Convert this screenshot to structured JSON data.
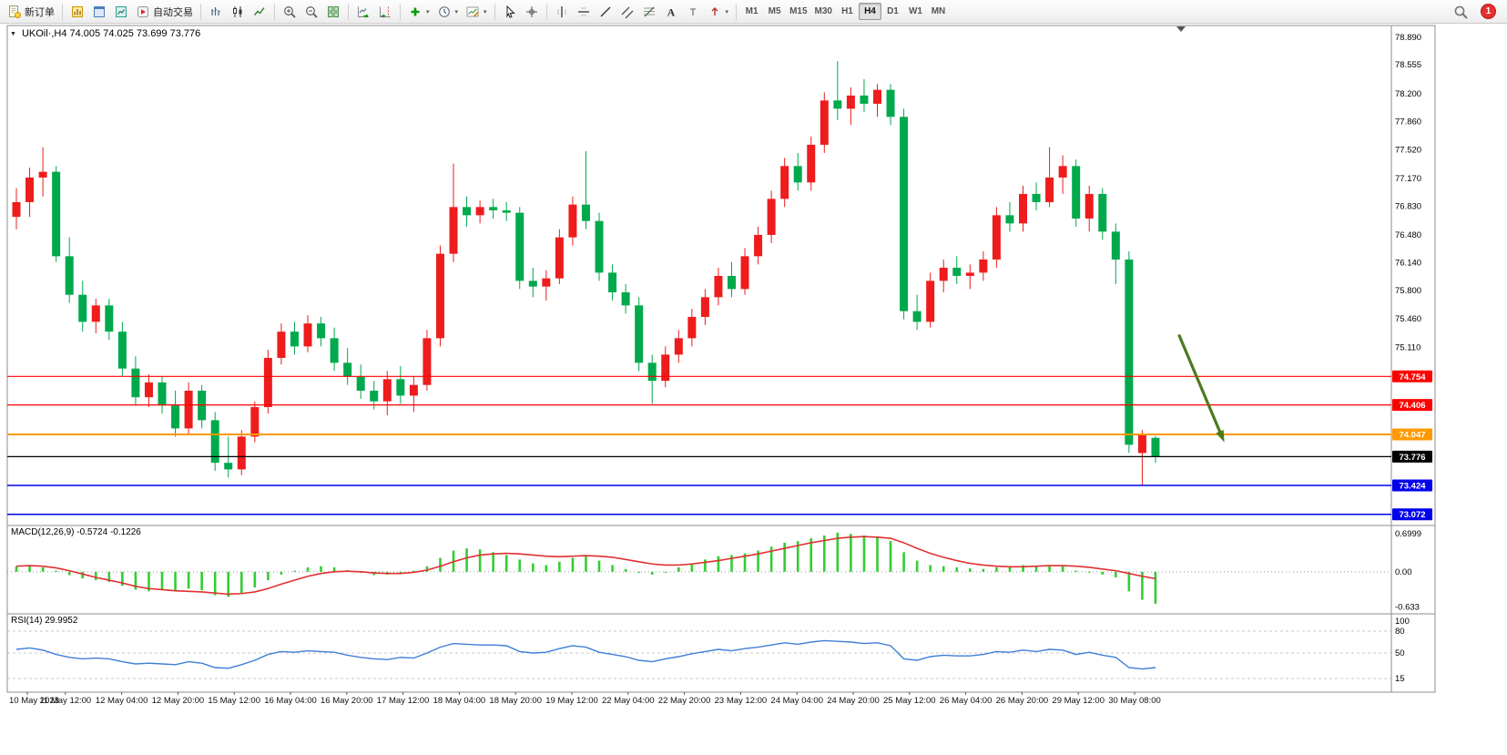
{
  "toolbar": {
    "buttons": [
      {
        "name": "new-order-button",
        "icon": "new-order-icon",
        "label": "新订单"
      },
      {
        "name": "separator"
      },
      {
        "name": "market-watch-button",
        "icon": "market-watch-icon"
      },
      {
        "name": "data-window-button",
        "icon": "data-window-icon"
      },
      {
        "name": "strategy-tester-button",
        "icon": "strategy-tester-icon"
      },
      {
        "name": "auto-trading-button",
        "icon": "auto-trading-icon",
        "label": "自动交易"
      },
      {
        "name": "separator"
      },
      {
        "name": "bar-chart-button",
        "icon": "bar-chart-icon"
      },
      {
        "name": "candlestick-chart-button",
        "icon": "candlestick-chart-icon"
      },
      {
        "name": "line-chart-button",
        "icon": "line-chart-icon"
      },
      {
        "name": "separator"
      },
      {
        "name": "zoom-in-button",
        "icon": "zoom-in-icon"
      },
      {
        "name": "zoom-out-button",
        "icon": "zoom-out-icon"
      },
      {
        "name": "tile-windows-button",
        "icon": "tile-windows-icon"
      },
      {
        "name": "separator"
      },
      {
        "name": "auto-scroll-button",
        "icon": "auto-scroll-icon"
      },
      {
        "name": "chart-shift-button",
        "icon": "chart-shift-icon"
      },
      {
        "name": "separator"
      },
      {
        "name": "indicators-button",
        "icon": "indicators-add-icon",
        "dropdown": true
      },
      {
        "name": "periods-button",
        "icon": "periods-icon",
        "dropdown": true
      },
      {
        "name": "templates-button",
        "icon": "templates-icon",
        "dropdown": true
      },
      {
        "name": "separator"
      },
      {
        "name": "cursor-button",
        "icon": "cursor-icon"
      },
      {
        "name": "crosshair-button",
        "icon": "crosshair-icon"
      },
      {
        "name": "separator"
      },
      {
        "name": "vertical-line-button",
        "icon": "vline-icon"
      },
      {
        "name": "horizontal-line-button",
        "icon": "hline-icon"
      },
      {
        "name": "trendline-button",
        "icon": "trendline-icon"
      },
      {
        "name": "channel-button",
        "icon": "channel-icon"
      },
      {
        "name": "fibonacci-button",
        "icon": "fibonacci-icon"
      },
      {
        "name": "text-button",
        "icon": "text-icon"
      },
      {
        "name": "label-button",
        "icon": "label-icon"
      },
      {
        "name": "arrows-button",
        "icon": "arrows-icon",
        "dropdown": true
      },
      {
        "name": "separator"
      }
    ],
    "timeframes": [
      "M1",
      "M5",
      "M15",
      "M30",
      "H1",
      "H4",
      "D1",
      "W1",
      "MN"
    ],
    "active_timeframe": "H4",
    "notification_count": "1"
  },
  "chart": {
    "menu_icon_glyph": "▼",
    "symbol_line": "UKOil·,H4 74.005 74.025 73.699 73.776"
  },
  "indicators": {
    "macd_label": "MACD(12,26,9) -0.5724 -0.1226",
    "rsi_label": "RSI(14) 29.9952"
  },
  "chart_data": [
    {
      "type": "candlestick",
      "symbol": "UKOil",
      "timeframe": "H4",
      "current_ohlc": {
        "open": 74.005,
        "high": 74.025,
        "low": 73.699,
        "close": 73.776
      },
      "ylim": [
        72.98,
        78.99
      ],
      "y_ticks": [
        "78.890",
        "78.555",
        "78.200",
        "77.860",
        "77.520",
        "77.170",
        "76.830",
        "76.480",
        "76.140",
        "75.800",
        "75.460",
        "75.110"
      ],
      "x_ticks": [
        "10 May 2023",
        "11 May 12:00",
        "12 May 04:00",
        "12 May 20:00",
        "15 May 12:00",
        "16 May 04:00",
        "16 May 20:00",
        "17 May 12:00",
        "18 May 04:00",
        "18 May 20:00",
        "19 May 12:00",
        "22 May 04:00",
        "22 May 20:00",
        "23 May 12:00",
        "24 May 04:00",
        "24 May 20:00",
        "25 May 12:00",
        "26 May 04:00",
        "26 May 20:00",
        "29 May 12:00",
        "30 May 08:00"
      ],
      "bull_color": "#EE1C1C",
      "bear_color": "#00A94C",
      "candles": [
        [
          76.7,
          77.05,
          76.55,
          76.88
        ],
        [
          76.88,
          77.3,
          76.7,
          77.18
        ],
        [
          77.18,
          77.55,
          76.95,
          77.25
        ],
        [
          77.25,
          77.32,
          76.15,
          76.22
        ],
        [
          76.22,
          76.45,
          75.65,
          75.75
        ],
        [
          75.75,
          75.92,
          75.3,
          75.42
        ],
        [
          75.42,
          75.7,
          75.28,
          75.62
        ],
        [
          75.62,
          75.7,
          75.2,
          75.3
        ],
        [
          75.3,
          75.42,
          74.75,
          74.85
        ],
        [
          74.85,
          75.0,
          74.4,
          74.5
        ],
        [
          74.5,
          74.78,
          74.38,
          74.68
        ],
        [
          74.68,
          74.75,
          74.3,
          74.4
        ],
        [
          74.4,
          74.58,
          74.02,
          74.12
        ],
        [
          74.12,
          74.68,
          74.05,
          74.58
        ],
        [
          74.58,
          74.65,
          74.12,
          74.22
        ],
        [
          74.22,
          74.32,
          73.6,
          73.7
        ],
        [
          73.7,
          74.02,
          73.52,
          73.62
        ],
        [
          73.62,
          74.1,
          73.55,
          74.02
        ],
        [
          74.02,
          74.45,
          73.95,
          74.38
        ],
        [
          74.38,
          75.08,
          74.3,
          74.98
        ],
        [
          74.98,
          75.4,
          74.9,
          75.3
        ],
        [
          75.3,
          75.42,
          75.02,
          75.12
        ],
        [
          75.12,
          75.5,
          75.05,
          75.4
        ],
        [
          75.4,
          75.48,
          75.12,
          75.22
        ],
        [
          75.22,
          75.35,
          74.82,
          74.92
        ],
        [
          74.92,
          75.1,
          74.65,
          74.75
        ],
        [
          74.75,
          74.9,
          74.48,
          74.58
        ],
        [
          74.58,
          74.7,
          74.35,
          74.45
        ],
        [
          74.45,
          74.82,
          74.28,
          74.72
        ],
        [
          74.72,
          74.88,
          74.42,
          74.52
        ],
        [
          74.52,
          74.75,
          74.32,
          74.65
        ],
        [
          74.65,
          75.32,
          74.58,
          75.22
        ],
        [
          75.22,
          76.35,
          75.12,
          76.25
        ],
        [
          76.25,
          77.35,
          76.15,
          76.82
        ],
        [
          76.82,
          76.95,
          76.58,
          76.72
        ],
        [
          76.72,
          76.9,
          76.62,
          76.82
        ],
        [
          76.82,
          76.92,
          76.68,
          76.78
        ],
        [
          76.78,
          76.88,
          76.65,
          76.75
        ],
        [
          76.75,
          76.82,
          75.82,
          75.92
        ],
        [
          75.92,
          76.08,
          75.72,
          75.85
        ],
        [
          75.85,
          76.05,
          75.68,
          75.95
        ],
        [
          75.95,
          76.55,
          75.88,
          76.45
        ],
        [
          76.45,
          76.95,
          76.35,
          76.85
        ],
        [
          76.85,
          77.5,
          76.55,
          76.65
        ],
        [
          76.65,
          76.75,
          75.92,
          76.02
        ],
        [
          76.02,
          76.12,
          75.68,
          75.78
        ],
        [
          75.78,
          75.88,
          75.52,
          75.62
        ],
        [
          75.62,
          75.72,
          74.82,
          74.92
        ],
        [
          74.92,
          75.02,
          74.42,
          74.7
        ],
        [
          74.7,
          75.12,
          74.62,
          75.02
        ],
        [
          75.02,
          75.32,
          74.92,
          75.22
        ],
        [
          75.22,
          75.58,
          75.12,
          75.48
        ],
        [
          75.48,
          75.82,
          75.38,
          75.72
        ],
        [
          75.72,
          76.08,
          75.62,
          75.98
        ],
        [
          75.98,
          76.15,
          75.72,
          75.82
        ],
        [
          75.82,
          76.32,
          75.75,
          76.22
        ],
        [
          76.22,
          76.58,
          76.12,
          76.48
        ],
        [
          76.48,
          77.02,
          76.38,
          76.92
        ],
        [
          76.92,
          77.42,
          76.82,
          77.32
        ],
        [
          77.32,
          77.48,
          77.02,
          77.12
        ],
        [
          77.12,
          77.68,
          77.02,
          77.58
        ],
        [
          77.58,
          78.22,
          77.48,
          78.12
        ],
        [
          78.12,
          78.6,
          77.88,
          78.02
        ],
        [
          78.02,
          78.28,
          77.82,
          78.18
        ],
        [
          78.18,
          78.38,
          77.98,
          78.08
        ],
        [
          78.08,
          78.32,
          77.92,
          78.25
        ],
        [
          78.25,
          78.32,
          77.82,
          77.92
        ],
        [
          77.92,
          78.02,
          75.45,
          75.55
        ],
        [
          75.55,
          75.75,
          75.32,
          75.42
        ],
        [
          75.42,
          76.02,
          75.35,
          75.92
        ],
        [
          75.92,
          76.18,
          75.78,
          76.08
        ],
        [
          76.08,
          76.22,
          75.88,
          75.98
        ],
        [
          75.98,
          76.12,
          75.82,
          76.02
        ],
        [
          76.02,
          76.28,
          75.92,
          76.18
        ],
        [
          76.18,
          76.82,
          76.08,
          76.72
        ],
        [
          76.72,
          76.88,
          76.52,
          76.62
        ],
        [
          76.62,
          77.08,
          76.52,
          76.98
        ],
        [
          76.98,
          77.12,
          76.78,
          76.88
        ],
        [
          76.88,
          77.55,
          76.82,
          77.18
        ],
        [
          77.18,
          77.45,
          76.98,
          77.32
        ],
        [
          77.32,
          77.4,
          76.58,
          76.68
        ],
        [
          76.68,
          77.08,
          76.52,
          76.98
        ],
        [
          76.98,
          77.05,
          76.42,
          76.52
        ],
        [
          76.52,
          76.62,
          75.88,
          76.18
        ],
        [
          76.18,
          76.28,
          73.82,
          73.92
        ],
        [
          73.82,
          74.1,
          73.42,
          74.05
        ],
        [
          74.005,
          74.025,
          73.699,
          73.776
        ]
      ],
      "hlines": [
        {
          "value": 74.754,
          "label": "74.754",
          "color": "#FF0000",
          "width": 1.2
        },
        {
          "value": 74.406,
          "label": "74.406",
          "color": "#FF0000",
          "width": 1.2
        },
        {
          "value": 74.047,
          "label": "74.047",
          "color": "#FF9900",
          "width": 2
        },
        {
          "value": 73.776,
          "label": "73.776",
          "color": "#000000",
          "width": 1.2,
          "role": "current-price"
        },
        {
          "value": 73.424,
          "label": "73.424",
          "color": "#0000EE",
          "width": 1.5
        },
        {
          "value": 73.072,
          "label": "73.072",
          "color": "#0000EE",
          "width": 1.5
        }
      ],
      "annotations": [
        {
          "type": "arrow",
          "from": {
            "bar": 87.8,
            "price": 75.25
          },
          "to": {
            "bar": 91.2,
            "price": 73.95
          },
          "color": "#4C7A1E",
          "width": 3.2
        }
      ]
    },
    {
      "type": "bar",
      "name": "MACD(12,26,9)",
      "current_histogram": -0.5724,
      "current_signal": -0.1226,
      "ylim": [
        -0.72,
        0.78
      ],
      "y_ticks": [
        "0.6999",
        "0.00",
        "-0.633"
      ],
      "histogram_color": "#32CD32",
      "signal_color": "#E03030",
      "histogram": [
        0.1,
        0.12,
        0.08,
        0.02,
        -0.06,
        -0.12,
        -0.15,
        -0.18,
        -0.25,
        -0.32,
        -0.35,
        -0.33,
        -0.35,
        -0.3,
        -0.33,
        -0.42,
        -0.45,
        -0.38,
        -0.28,
        -0.15,
        -0.05,
        0.02,
        0.08,
        0.1,
        0.08,
        0.03,
        -0.02,
        -0.06,
        -0.05,
        -0.02,
        0.02,
        0.1,
        0.25,
        0.38,
        0.42,
        0.4,
        0.35,
        0.3,
        0.22,
        0.15,
        0.12,
        0.18,
        0.25,
        0.28,
        0.2,
        0.12,
        0.05,
        -0.02,
        -0.05,
        0.0,
        0.08,
        0.15,
        0.22,
        0.28,
        0.3,
        0.33,
        0.38,
        0.45,
        0.52,
        0.55,
        0.6,
        0.65,
        0.7,
        0.68,
        0.65,
        0.62,
        0.55,
        0.35,
        0.2,
        0.12,
        0.1,
        0.08,
        0.06,
        0.05,
        0.08,
        0.1,
        0.12,
        0.1,
        0.12,
        0.1,
        0.02,
        0.0,
        -0.05,
        -0.1,
        -0.35,
        -0.5,
        -0.5724
      ],
      "signal": [
        0.1,
        0.11,
        0.1,
        0.07,
        0.02,
        -0.04,
        -0.1,
        -0.15,
        -0.2,
        -0.26,
        -0.3,
        -0.32,
        -0.34,
        -0.35,
        -0.36,
        -0.38,
        -0.4,
        -0.39,
        -0.36,
        -0.3,
        -0.22,
        -0.15,
        -0.08,
        -0.03,
        0.0,
        0.01,
        0.0,
        -0.02,
        -0.03,
        -0.03,
        -0.01,
        0.03,
        0.1,
        0.18,
        0.25,
        0.3,
        0.32,
        0.33,
        0.32,
        0.3,
        0.28,
        0.27,
        0.28,
        0.29,
        0.28,
        0.26,
        0.22,
        0.18,
        0.14,
        0.12,
        0.12,
        0.14,
        0.17,
        0.2,
        0.24,
        0.28,
        0.32,
        0.37,
        0.42,
        0.47,
        0.52,
        0.56,
        0.6,
        0.62,
        0.63,
        0.62,
        0.6,
        0.52,
        0.42,
        0.33,
        0.26,
        0.2,
        0.15,
        0.12,
        0.1,
        0.09,
        0.09,
        0.1,
        0.11,
        0.11,
        0.1,
        0.08,
        0.05,
        0.02,
        -0.03,
        -0.08,
        -0.1226
      ]
    },
    {
      "type": "line",
      "name": "RSI(14)",
      "current_value": 29.9952,
      "ylim": [
        0,
        100
      ],
      "y_ticks": [
        "100",
        "80",
        "50",
        "15"
      ],
      "levels": [
        80,
        50,
        15
      ],
      "line_color": "#3F7FD6",
      "values": [
        55,
        57,
        54,
        48,
        44,
        42,
        43,
        42,
        38,
        35,
        36,
        35,
        34,
        38,
        36,
        30,
        29,
        34,
        40,
        48,
        52,
        51,
        53,
        52,
        51,
        47,
        44,
        42,
        41,
        44,
        43,
        50,
        58,
        63,
        62,
        61,
        61,
        60,
        52,
        50,
        51,
        56,
        60,
        58,
        51,
        48,
        45,
        40,
        38,
        42,
        45,
        49,
        52,
        55,
        53,
        56,
        58,
        61,
        64,
        62,
        65,
        67,
        66,
        65,
        63,
        64,
        60,
        42,
        40,
        45,
        47,
        46,
        46,
        48,
        52,
        51,
        54,
        52,
        55,
        54,
        48,
        51,
        47,
        44,
        30,
        28,
        29.9952
      ]
    }
  ]
}
